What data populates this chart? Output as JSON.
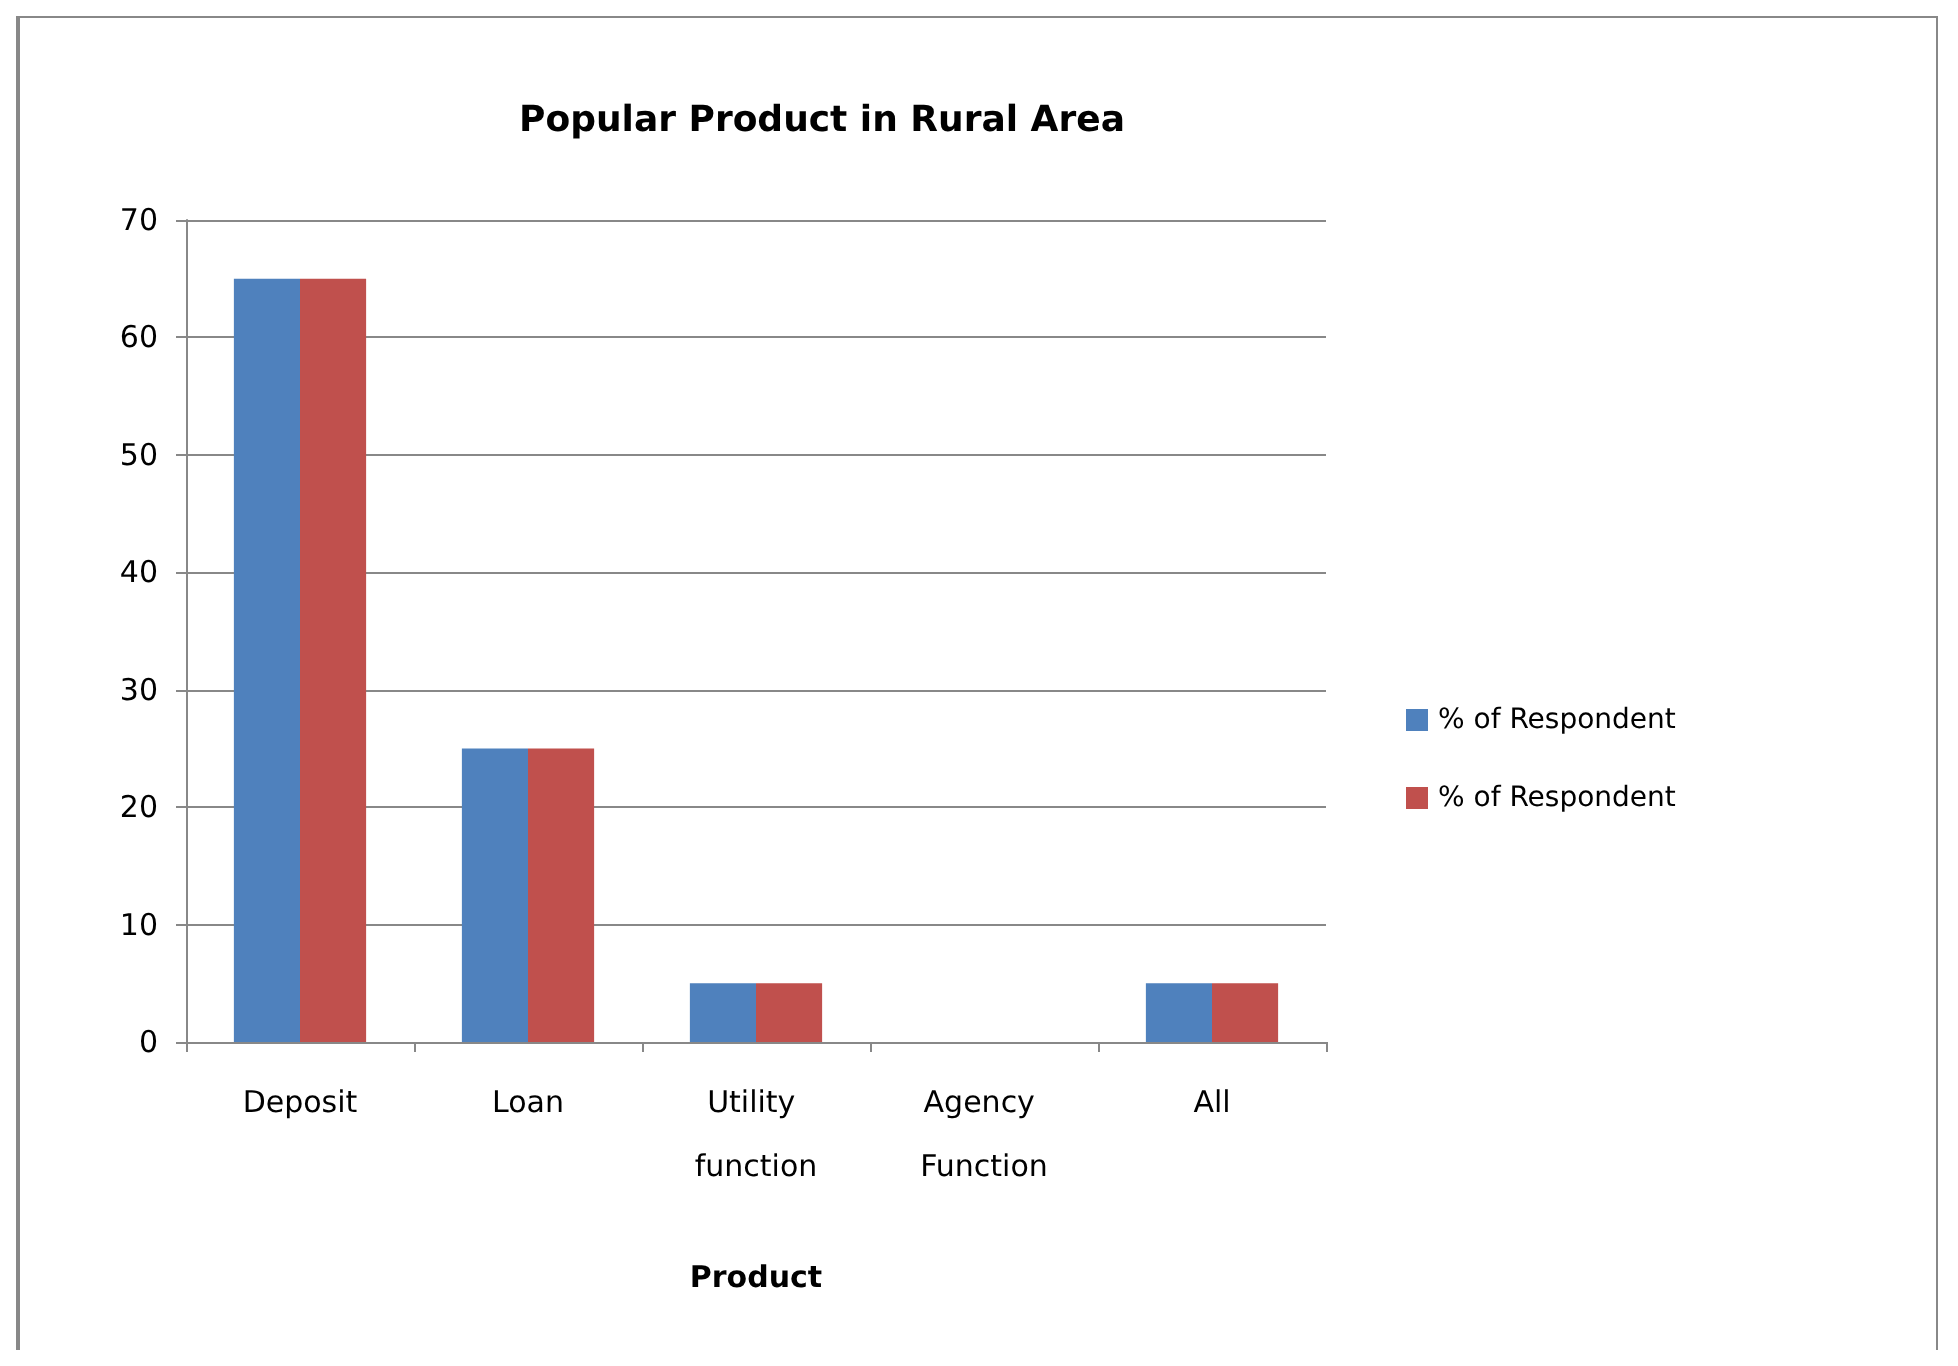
{
  "chart_data": {
    "type": "bar",
    "title": "Popular Product in Rural Area",
    "xlabel": "Product",
    "categories": [
      "Deposit",
      "Loan",
      "Utility function",
      "Agency Function",
      "All"
    ],
    "series": [
      {
        "name": "% of Respondent",
        "color": "#4f81bd",
        "values": [
          65,
          25,
          5,
          0,
          5
        ]
      },
      {
        "name": "% of Respondent",
        "color": "#c0504d",
        "values": [
          65,
          25,
          5,
          0,
          5
        ]
      }
    ],
    "ylim": [
      0,
      70
    ],
    "yticks": [
      0,
      10,
      20,
      30,
      40,
      50,
      60,
      70
    ],
    "grid": "y",
    "legend": "right"
  }
}
